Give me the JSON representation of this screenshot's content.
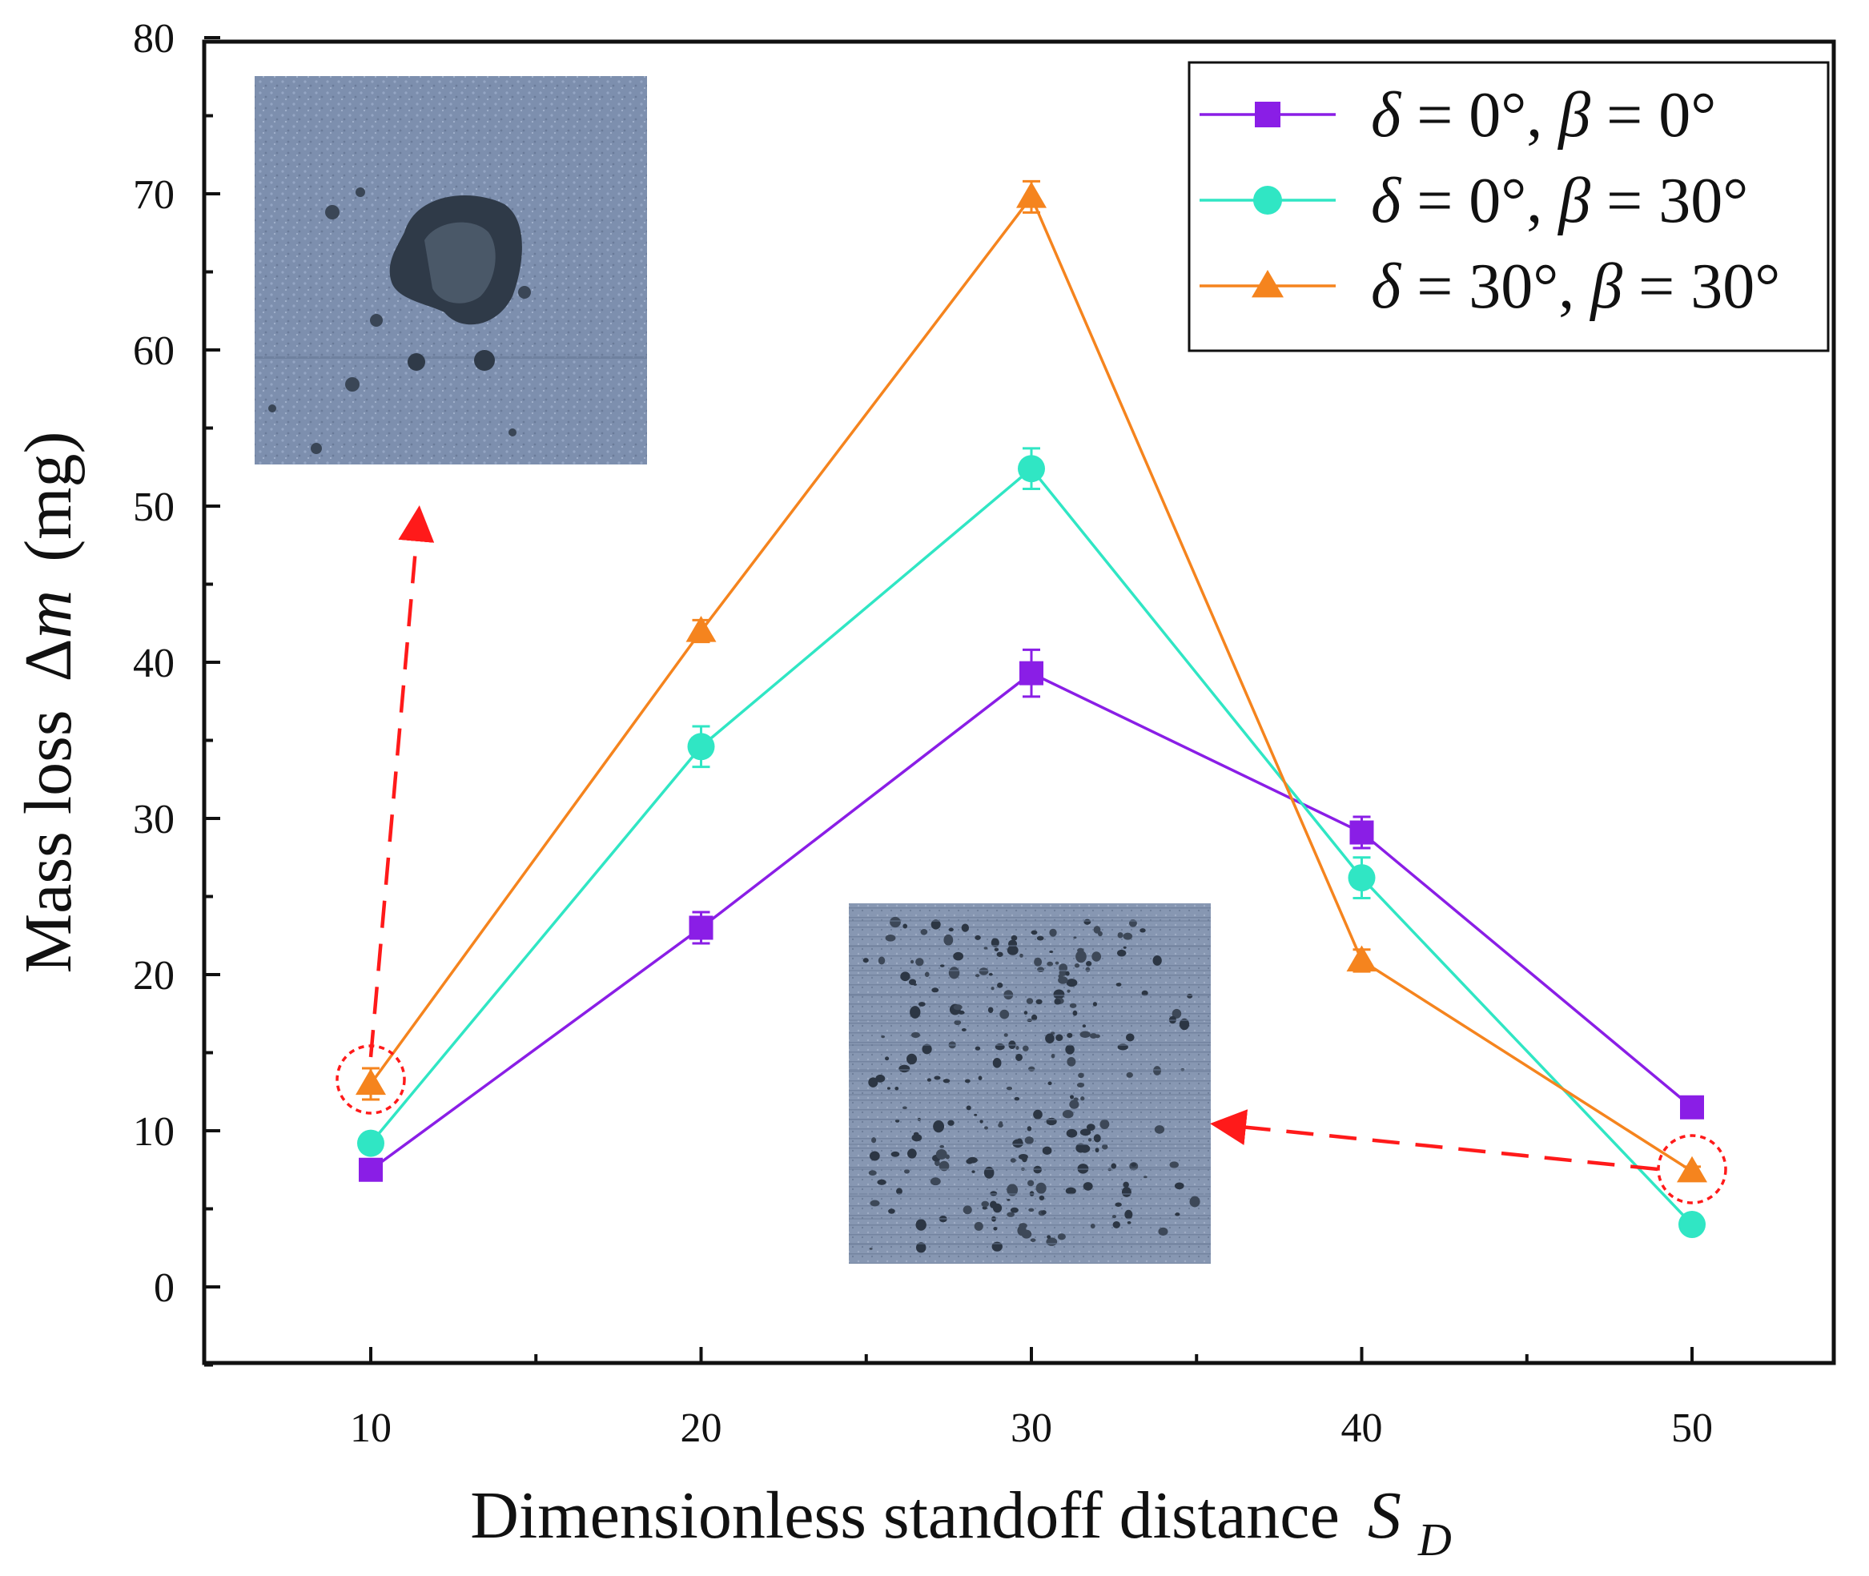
{
  "chart_data": {
    "type": "line",
    "title": "",
    "xlabel": "Dimensionless standoff distance",
    "xlabel_symbol": "S",
    "xlabel_subscript": "D",
    "ylabel": "Mass loss",
    "ylabel_symbol_delta": "Δ",
    "ylabel_symbol_var": "m",
    "ylabel_unit": "(mg)",
    "x": [
      10,
      20,
      30,
      40,
      50
    ],
    "xlim": [
      5,
      55
    ],
    "ylim": [
      -5,
      80
    ],
    "xticks": [
      10,
      20,
      30,
      40,
      50
    ],
    "yticks": [
      0,
      10,
      20,
      30,
      40,
      50,
      60,
      70,
      80
    ],
    "legend_position": "top-right",
    "series": [
      {
        "name": "δ = 0°, β = 0°",
        "delta_value": "0°",
        "beta_value": "0°",
        "marker": "square",
        "color": "#8a1ee6",
        "values": [
          7.5,
          23.0,
          39.3,
          29.1,
          11.5
        ],
        "errors": [
          0.3,
          1.0,
          1.5,
          1.0,
          0.3
        ]
      },
      {
        "name": "δ = 0°, β = 30°",
        "delta_value": "0°",
        "beta_value": "30°",
        "marker": "circle",
        "color": "#30e6c4",
        "values": [
          9.2,
          34.6,
          52.4,
          26.2,
          4.0
        ],
        "errors": [
          0.3,
          1.3,
          1.3,
          1.3,
          0.3
        ]
      },
      {
        "name": "δ = 30°, β = 30°",
        "delta_value": "30°",
        "beta_value": "30°",
        "marker": "triangle",
        "color": "#f5841e",
        "values": [
          13.0,
          42.0,
          69.8,
          20.9,
          7.4
        ],
        "errors": [
          1.0,
          0.7,
          1.0,
          0.7,
          0.3
        ]
      }
    ],
    "annotations": [
      {
        "type": "highlight-circle",
        "series": "δ = 30°, β = 30°",
        "x": 10,
        "y": 13.0,
        "color": "#ff1a1a"
      },
      {
        "type": "highlight-circle",
        "series": "δ = 30°, β = 30°",
        "x": 50,
        "y": 7.4,
        "color": "#ff1a1a"
      },
      {
        "type": "dashed-arrow",
        "from_point": "SD=10",
        "to": "inset-top-left",
        "color": "#ff1a1a"
      },
      {
        "type": "dashed-arrow",
        "from_point": "SD=50",
        "to": "inset-bottom-center",
        "color": "#ff1a1a"
      }
    ],
    "insets": [
      {
        "name": "erosion-photo-sd10",
        "description": "surface micrograph",
        "tint": "#7a8cac"
      },
      {
        "name": "erosion-photo-sd50",
        "description": "surface micrograph",
        "tint": "#8b9ab3"
      }
    ]
  }
}
